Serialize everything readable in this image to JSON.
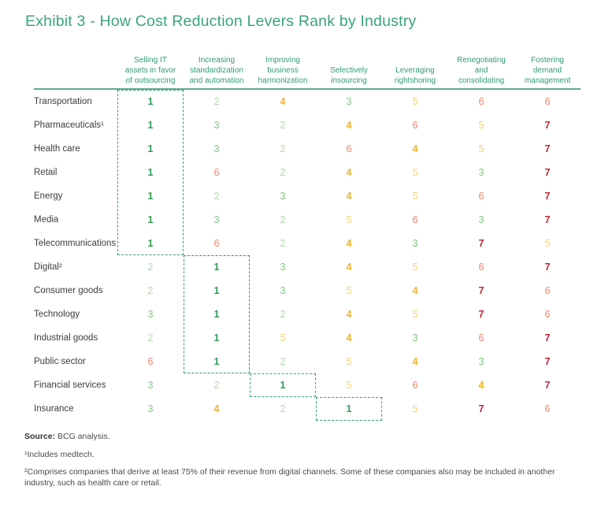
{
  "title": "Exhibit 3 - How Cost Reduction Levers Rank by Industry",
  "colors": {
    "title": "#3BA47C",
    "header_text": "#2F9C73",
    "divider": "#5FA796",
    "highlight_border": "#2F9E77",
    "row_label": "#3D3D3D",
    "footnote": "#4A4A4A",
    "rank_colors": {
      "1": "#2D9C50",
      "2": "#AFD9A8",
      "3": "#7CC87C",
      "4": "#F2B229",
      "5": "#F8D172",
      "6": "#F1846B",
      "7": "#C52134"
    }
  },
  "chart_data": {
    "type": "heatmap",
    "title": "Exhibit 3 - How Cost Reduction Levers Rank by Industry",
    "rank_scale": {
      "best": 1,
      "worst": 7
    },
    "legend_position": "none",
    "columns": [
      "Selling IT assets in favor of outsourcing",
      "Increasing standardization and automation",
      "Improving business harmonization",
      "Selectively insourcing",
      "Leveraging rightshoring",
      "Renegotiating and consolidating",
      "Fostering demand management"
    ],
    "column_lines": [
      [
        "Selling IT",
        "assets in favor",
        "of outsourcing"
      ],
      [
        "Increasing",
        "standardization",
        "and automation"
      ],
      [
        "Improving",
        "business",
        "harmonization"
      ],
      [
        "Selectively",
        "insourcing"
      ],
      [
        "Leveraging",
        "rightshoring"
      ],
      [
        "Renegotiating",
        "and",
        "consolidating"
      ],
      [
        "Fostering",
        "demand",
        "management"
      ]
    ],
    "rows": [
      {
        "industry": "Transportation",
        "ranks": [
          1,
          2,
          4,
          3,
          5,
          6,
          6
        ]
      },
      {
        "industry": "Pharmaceuticals¹",
        "ranks": [
          1,
          3,
          2,
          4,
          6,
          5,
          7
        ]
      },
      {
        "industry": "Health care",
        "ranks": [
          1,
          3,
          2,
          6,
          4,
          5,
          7
        ]
      },
      {
        "industry": "Retail",
        "ranks": [
          1,
          6,
          2,
          4,
          5,
          3,
          7
        ]
      },
      {
        "industry": "Energy",
        "ranks": [
          1,
          2,
          3,
          4,
          5,
          6,
          7
        ]
      },
      {
        "industry": "Media",
        "ranks": [
          1,
          3,
          2,
          5,
          6,
          3,
          7
        ]
      },
      {
        "industry": "Telecommunications",
        "ranks": [
          1,
          6,
          2,
          4,
          3,
          7,
          5
        ]
      },
      {
        "industry": "Digital²",
        "ranks": [
          2,
          1,
          3,
          4,
          5,
          6,
          7
        ]
      },
      {
        "industry": "Consumer goods",
        "ranks": [
          2,
          1,
          3,
          5,
          4,
          7,
          6
        ]
      },
      {
        "industry": "Technology",
        "ranks": [
          3,
          1,
          2,
          4,
          5,
          7,
          6
        ]
      },
      {
        "industry": "Industrial goods",
        "ranks": [
          2,
          1,
          5,
          4,
          3,
          6,
          7
        ]
      },
      {
        "industry": "Public sector",
        "ranks": [
          6,
          1,
          2,
          5,
          4,
          3,
          7
        ]
      },
      {
        "industry": "Financial services",
        "ranks": [
          3,
          2,
          1,
          5,
          6,
          4,
          7
        ]
      },
      {
        "industry": "Insurance",
        "ranks": [
          3,
          4,
          2,
          1,
          5,
          7,
          6
        ]
      }
    ],
    "highlight_boxes": [
      {
        "column": 0,
        "first_row": 0,
        "last_row": 6
      },
      {
        "column": 1,
        "first_row": 7,
        "last_row": 11
      },
      {
        "column": 2,
        "first_row": 12,
        "last_row": 12
      },
      {
        "column": 3,
        "first_row": 13,
        "last_row": 13
      }
    ]
  },
  "footnotes": {
    "source_label": "Source:",
    "source_text": "BCG analysis.",
    "note1": "¹Includes medtech.",
    "note2": "²Comprises companies that derive at least 75% of their revenue from digital channels. Some of these companies also may be included in another industry, such as health care or retail."
  }
}
